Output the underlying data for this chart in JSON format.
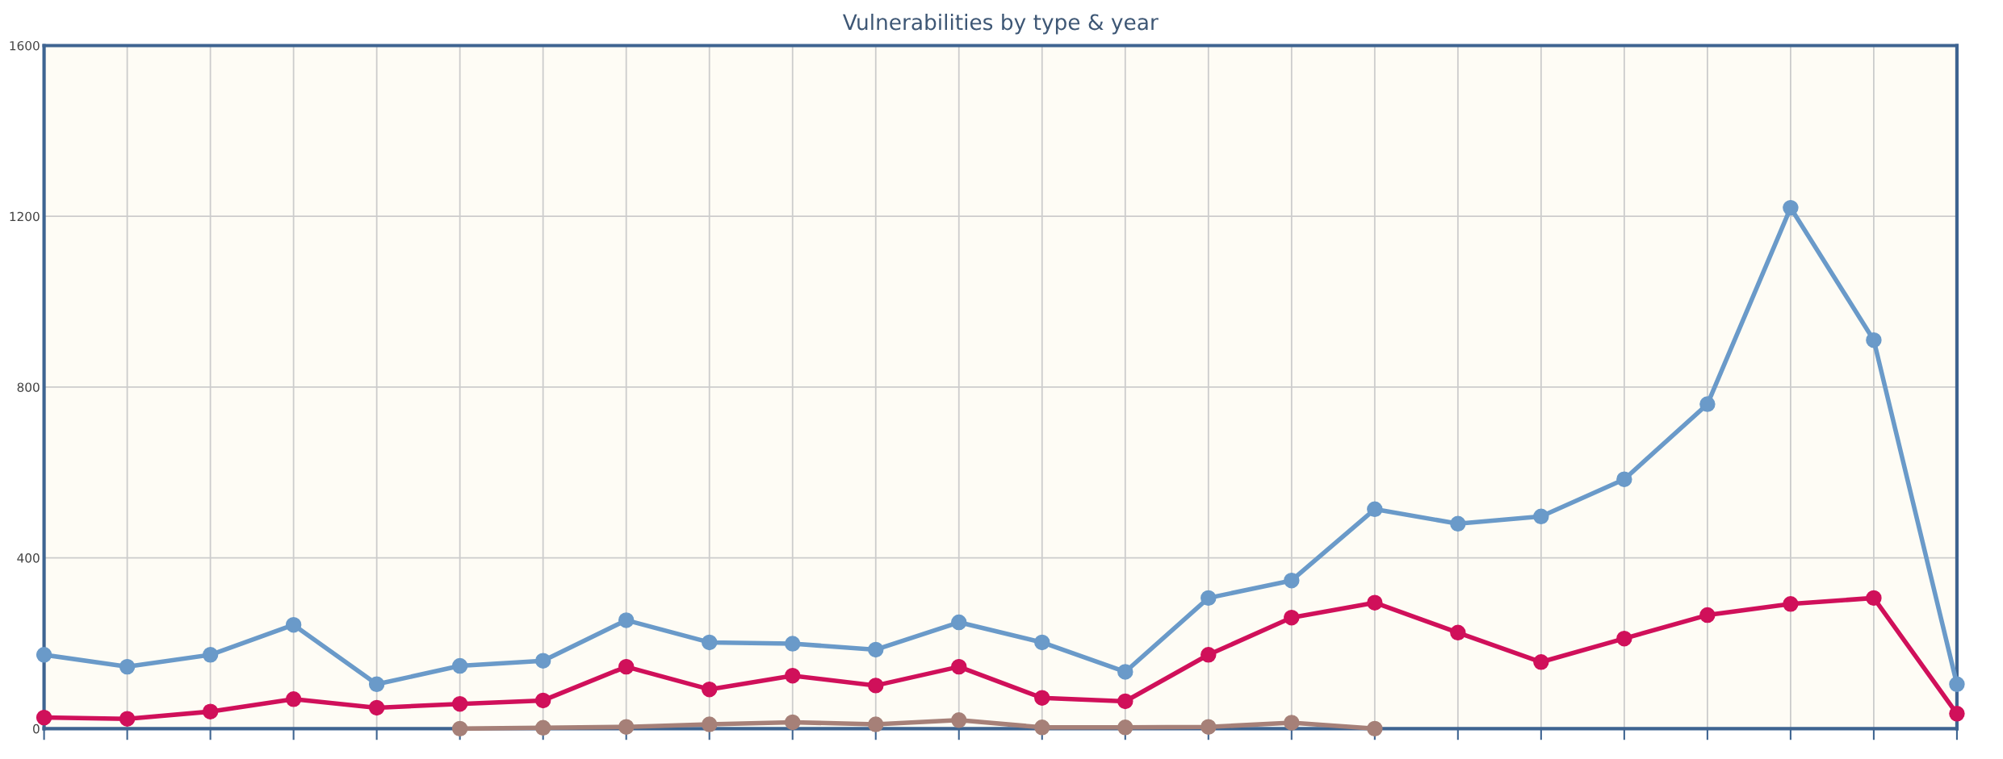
{
  "chart_data": {
    "type": "line",
    "title": "Vulnerabilities by type & year",
    "categories": [
      null,
      null,
      null,
      null,
      null,
      null,
      null,
      null,
      null,
      null,
      null,
      null,
      null,
      null,
      null,
      null,
      null,
      null,
      null,
      null,
      null,
      null,
      null,
      null
    ],
    "series": [
      {
        "color": "#6a9ac9",
        "values": [
          173,
          145,
          173,
          243,
          104,
          147,
          159,
          254,
          202,
          199,
          185,
          249,
          202,
          133,
          306,
          347,
          514,
          480,
          497,
          584,
          760,
          1220,
          910,
          104
        ]
      },
      {
        "color": "#d0105a",
        "values": [
          26,
          23,
          40,
          69,
          49,
          58,
          66,
          145,
          92,
          124,
          101,
          145,
          72,
          64,
          173,
          260,
          295,
          225,
          156,
          211,
          266,
          292,
          306,
          35
        ]
      },
      {
        "color": "#a68078",
        "values": [
          null,
          null,
          null,
          null,
          null,
          0,
          2,
          4,
          10,
          15,
          10,
          20,
          3,
          3,
          4,
          14,
          0,
          null,
          null,
          null,
          null,
          null,
          null,
          null
        ]
      }
    ],
    "ylim": [
      0,
      1600
    ],
    "yticks": [
      0,
      400,
      800,
      1200,
      1600
    ],
    "grid": true,
    "marker": "circle",
    "line_style": "solid",
    "legend": false
  }
}
